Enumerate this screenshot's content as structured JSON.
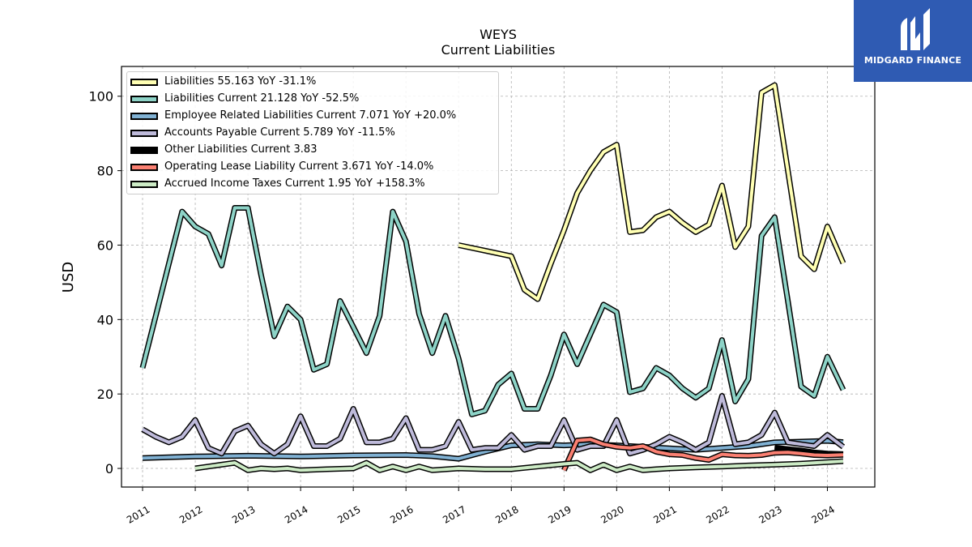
{
  "logo": {
    "text": "MIDGARD FINANCE",
    "color": "#2f5bb3"
  },
  "chart_data": {
    "type": "line",
    "title": "WEYS",
    "subtitle": "Current  Liabilities",
    "ylabel": "USD",
    "xlabel": "",
    "xlim": [
      2010.6,
      2024.9
    ],
    "ylim": [
      -5,
      108
    ],
    "yticks": [
      0,
      20,
      40,
      60,
      80,
      100
    ],
    "xticks": [
      "2011",
      "2012",
      "2013",
      "2014",
      "2015",
      "2016",
      "2017",
      "2018",
      "2019",
      "2020",
      "2021",
      "2022",
      "2023",
      "2024"
    ],
    "grid": true,
    "legend_position": "top-left",
    "series": [
      {
        "name": "Liabilities",
        "legend": "Liabilities  55.163 YoY -31.1%",
        "color": "#ffffb3",
        "points": [
          [
            2017.0,
            60.0
          ],
          [
            2017.5,
            58.5
          ],
          [
            2018.0,
            57.0
          ],
          [
            2018.25,
            48.0
          ],
          [
            2018.5,
            45.5
          ],
          [
            2018.75,
            55.0
          ],
          [
            2019.0,
            64.0
          ],
          [
            2019.25,
            74.0
          ],
          [
            2019.5,
            80.0
          ],
          [
            2019.75,
            85.0
          ],
          [
            2020.0,
            87.0
          ],
          [
            2020.25,
            63.5
          ],
          [
            2020.5,
            64.0
          ],
          [
            2020.75,
            67.5
          ],
          [
            2021.0,
            69.0
          ],
          [
            2021.25,
            66.0
          ],
          [
            2021.5,
            63.5
          ],
          [
            2021.75,
            65.5
          ],
          [
            2022.0,
            76.0
          ],
          [
            2022.25,
            59.5
          ],
          [
            2022.5,
            65.0
          ],
          [
            2022.75,
            101.0
          ],
          [
            2023.0,
            103.0
          ],
          [
            2023.5,
            57.0
          ],
          [
            2023.75,
            53.5
          ],
          [
            2024.0,
            65.0
          ],
          [
            2024.3,
            55.163
          ]
        ]
      },
      {
        "name": "Liabilities Current",
        "legend": "Liabilities Current  21.128 YoY -52.5%",
        "color": "#8dd3c7",
        "points": [
          [
            2011.0,
            27.0
          ],
          [
            2011.25,
            41.0
          ],
          [
            2011.5,
            55.0
          ],
          [
            2011.75,
            69.0
          ],
          [
            2012.0,
            65.0
          ],
          [
            2012.25,
            63.0
          ],
          [
            2012.5,
            54.5
          ],
          [
            2012.75,
            70.0
          ],
          [
            2013.0,
            70.0
          ],
          [
            2013.25,
            52.0
          ],
          [
            2013.5,
            35.5
          ],
          [
            2013.75,
            43.5
          ],
          [
            2014.0,
            40.0
          ],
          [
            2014.25,
            26.5
          ],
          [
            2014.5,
            28.0
          ],
          [
            2014.75,
            45.0
          ],
          [
            2015.0,
            38.0
          ],
          [
            2015.25,
            31.0
          ],
          [
            2015.5,
            41.0
          ],
          [
            2015.75,
            69.0
          ],
          [
            2016.0,
            61.0
          ],
          [
            2016.25,
            41.5
          ],
          [
            2016.5,
            31.0
          ],
          [
            2016.75,
            41.0
          ],
          [
            2017.0,
            29.5
          ],
          [
            2017.25,
            14.5
          ],
          [
            2017.5,
            15.5
          ],
          [
            2017.75,
            22.5
          ],
          [
            2018.0,
            25.5
          ],
          [
            2018.25,
            16.0
          ],
          [
            2018.5,
            16.0
          ],
          [
            2018.75,
            25.0
          ],
          [
            2019.0,
            36.0
          ],
          [
            2019.25,
            28.0
          ],
          [
            2019.5,
            36.0
          ],
          [
            2019.75,
            44.0
          ],
          [
            2020.0,
            42.0
          ],
          [
            2020.25,
            20.5
          ],
          [
            2020.5,
            21.5
          ],
          [
            2020.75,
            27.0
          ],
          [
            2021.0,
            25.0
          ],
          [
            2021.25,
            21.5
          ],
          [
            2021.5,
            19.0
          ],
          [
            2021.75,
            21.5
          ],
          [
            2022.0,
            34.5
          ],
          [
            2022.25,
            18.0
          ],
          [
            2022.5,
            24.0
          ],
          [
            2022.75,
            62.5
          ],
          [
            2023.0,
            67.5
          ],
          [
            2023.25,
            45.0
          ],
          [
            2023.5,
            22.0
          ],
          [
            2023.75,
            19.5
          ],
          [
            2024.0,
            30.0
          ],
          [
            2024.3,
            21.128
          ]
        ]
      },
      {
        "name": "Employee Related Liabilities Current",
        "legend": "Employee Related Liabilities Current  7.071 YoY +20.0%",
        "color": "#80b1d3",
        "points": [
          [
            2011.0,
            2.8
          ],
          [
            2012.0,
            3.2
          ],
          [
            2013.0,
            3.4
          ],
          [
            2014.0,
            3.2
          ],
          [
            2015.0,
            3.5
          ],
          [
            2016.0,
            3.6
          ],
          [
            2016.5,
            3.3
          ],
          [
            2017.0,
            2.6
          ],
          [
            2017.5,
            4.5
          ],
          [
            2018.0,
            6.2
          ],
          [
            2018.5,
            6.5
          ],
          [
            2019.0,
            6.2
          ],
          [
            2019.5,
            6.5
          ],
          [
            2020.0,
            6.2
          ],
          [
            2020.5,
            5.8
          ],
          [
            2021.0,
            5.4
          ],
          [
            2021.5,
            5.0
          ],
          [
            2022.0,
            5.5
          ],
          [
            2022.5,
            6.0
          ],
          [
            2023.0,
            7.0
          ],
          [
            2023.5,
            7.2
          ],
          [
            2024.0,
            7.4
          ],
          [
            2024.3,
            7.071
          ]
        ]
      },
      {
        "name": "Accounts Payable Current",
        "legend": "Accounts Payable Current  5.789 YoY -11.5%",
        "color": "#bebada",
        "points": [
          [
            2011.0,
            10.5
          ],
          [
            2011.25,
            8.5
          ],
          [
            2011.5,
            7.0
          ],
          [
            2011.75,
            8.5
          ],
          [
            2012.0,
            13.0
          ],
          [
            2012.25,
            5.5
          ],
          [
            2012.5,
            4.0
          ],
          [
            2012.75,
            10.0
          ],
          [
            2013.0,
            11.5
          ],
          [
            2013.25,
            6.5
          ],
          [
            2013.5,
            4.0
          ],
          [
            2013.75,
            6.5
          ],
          [
            2014.0,
            14.0
          ],
          [
            2014.25,
            6.0
          ],
          [
            2014.5,
            6.0
          ],
          [
            2014.75,
            8.0
          ],
          [
            2015.0,
            16.0
          ],
          [
            2015.25,
            7.0
          ],
          [
            2015.5,
            7.0
          ],
          [
            2015.75,
            8.0
          ],
          [
            2016.0,
            13.5
          ],
          [
            2016.25,
            5.0
          ],
          [
            2016.5,
            5.0
          ],
          [
            2016.75,
            6.0
          ],
          [
            2017.0,
            12.5
          ],
          [
            2017.25,
            5.0
          ],
          [
            2017.5,
            5.5
          ],
          [
            2017.75,
            5.5
          ],
          [
            2018.0,
            9.0
          ],
          [
            2018.25,
            5.0
          ],
          [
            2018.5,
            6.0
          ],
          [
            2018.75,
            6.0
          ],
          [
            2019.0,
            13.0
          ],
          [
            2019.25,
            5.0
          ],
          [
            2019.5,
            6.0
          ],
          [
            2019.75,
            6.0
          ],
          [
            2020.0,
            13.0
          ],
          [
            2020.25,
            4.0
          ],
          [
            2020.5,
            5.0
          ],
          [
            2020.75,
            6.5
          ],
          [
            2021.0,
            8.5
          ],
          [
            2021.25,
            7.0
          ],
          [
            2021.5,
            5.0
          ],
          [
            2021.75,
            7.0
          ],
          [
            2022.0,
            19.5
          ],
          [
            2022.25,
            6.5
          ],
          [
            2022.5,
            7.0
          ],
          [
            2022.75,
            9.0
          ],
          [
            2023.0,
            15.0
          ],
          [
            2023.25,
            7.0
          ],
          [
            2023.5,
            6.5
          ],
          [
            2023.75,
            6.0
          ],
          [
            2024.0,
            9.0
          ],
          [
            2024.3,
            5.789
          ]
        ]
      },
      {
        "name": "Other Liabilities Current",
        "legend": "Other Liabilities Current  3.83",
        "color": "#000000",
        "points": [
          [
            2023.0,
            5.6
          ],
          [
            2023.25,
            5.2
          ],
          [
            2023.5,
            4.8
          ],
          [
            2023.75,
            4.3
          ],
          [
            2024.0,
            4.0
          ],
          [
            2024.3,
            3.83
          ]
        ]
      },
      {
        "name": "Operating Lease Liability Current",
        "legend": "Operating Lease Liability Current  3.671 YoY -14.0%",
        "color": "#fb8072",
        "points": [
          [
            2019.0,
            -0.5
          ],
          [
            2019.25,
            7.5
          ],
          [
            2019.5,
            7.8
          ],
          [
            2019.75,
            6.5
          ],
          [
            2020.0,
            5.8
          ],
          [
            2020.25,
            5.5
          ],
          [
            2020.5,
            6.0
          ],
          [
            2020.75,
            4.5
          ],
          [
            2021.0,
            3.8
          ],
          [
            2021.25,
            3.6
          ],
          [
            2021.5,
            2.8
          ],
          [
            2021.75,
            2.3
          ],
          [
            2022.0,
            3.8
          ],
          [
            2022.25,
            3.5
          ],
          [
            2022.5,
            3.4
          ],
          [
            2022.75,
            3.6
          ],
          [
            2023.0,
            4.2
          ],
          [
            2023.25,
            4.3
          ],
          [
            2023.5,
            4.0
          ],
          [
            2023.75,
            3.6
          ],
          [
            2024.0,
            3.5
          ],
          [
            2024.3,
            3.671
          ]
        ]
      },
      {
        "name": "Accrued Income Taxes Current",
        "legend": "Accrued Income Taxes Current  1.95 YoY +158.3%",
        "color": "#ccebc5",
        "points": [
          [
            2012.0,
            0.0
          ],
          [
            2012.25,
            0.5
          ],
          [
            2012.5,
            1.0
          ],
          [
            2012.75,
            1.5
          ],
          [
            2013.0,
            -0.5
          ],
          [
            2013.25,
            0.0
          ],
          [
            2013.5,
            -0.2
          ],
          [
            2013.75,
            0.0
          ],
          [
            2014.0,
            -0.5
          ],
          [
            2014.5,
            -0.2
          ],
          [
            2015.0,
            0.0
          ],
          [
            2015.25,
            1.5
          ],
          [
            2015.5,
            -0.5
          ],
          [
            2015.75,
            0.5
          ],
          [
            2016.0,
            -0.5
          ],
          [
            2016.25,
            0.5
          ],
          [
            2016.5,
            -0.5
          ],
          [
            2017.0,
            0.0
          ],
          [
            2017.5,
            -0.2
          ],
          [
            2018.0,
            -0.2
          ],
          [
            2018.5,
            0.5
          ],
          [
            2019.0,
            1.2
          ],
          [
            2019.25,
            1.5
          ],
          [
            2019.5,
            -0.5
          ],
          [
            2019.75,
            1.0
          ],
          [
            2020.0,
            -0.5
          ],
          [
            2020.25,
            0.5
          ],
          [
            2020.5,
            -0.5
          ],
          [
            2020.75,
            -0.2
          ],
          [
            2021.0,
            0.0
          ],
          [
            2021.5,
            0.3
          ],
          [
            2022.0,
            0.5
          ],
          [
            2022.5,
            0.8
          ],
          [
            2023.0,
            1.0
          ],
          [
            2023.5,
            1.3
          ],
          [
            2024.0,
            1.7
          ],
          [
            2024.3,
            1.95
          ]
        ]
      }
    ]
  }
}
